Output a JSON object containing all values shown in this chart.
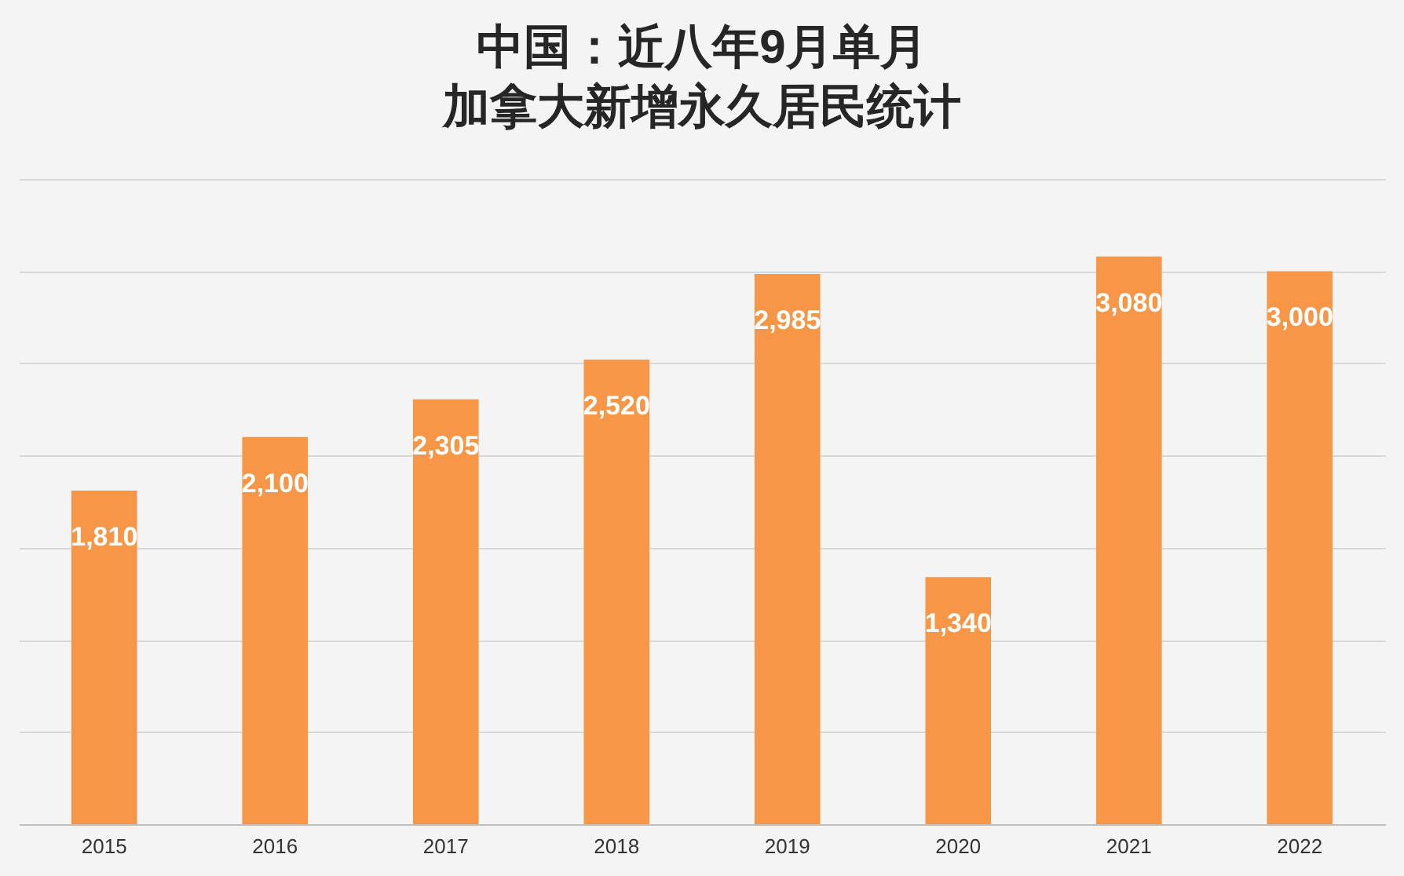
{
  "chart_data": {
    "type": "bar",
    "title": "中国：近八年9月单月",
    "subtitle": "加拿大新增永久居民统计",
    "categories": [
      "2015",
      "2016",
      "2017",
      "2018",
      "2019",
      "2020",
      "2021",
      "2022"
    ],
    "values": [
      1810,
      2100,
      2305,
      2520,
      2985,
      1340,
      3080,
      3000
    ],
    "value_labels": [
      "1,810",
      "2,100",
      "2,305",
      "2,520",
      "2,985",
      "1,340",
      "3,080",
      "3,000"
    ],
    "color": "#f79646",
    "tick_labels": "x",
    "grid": "y"
  }
}
